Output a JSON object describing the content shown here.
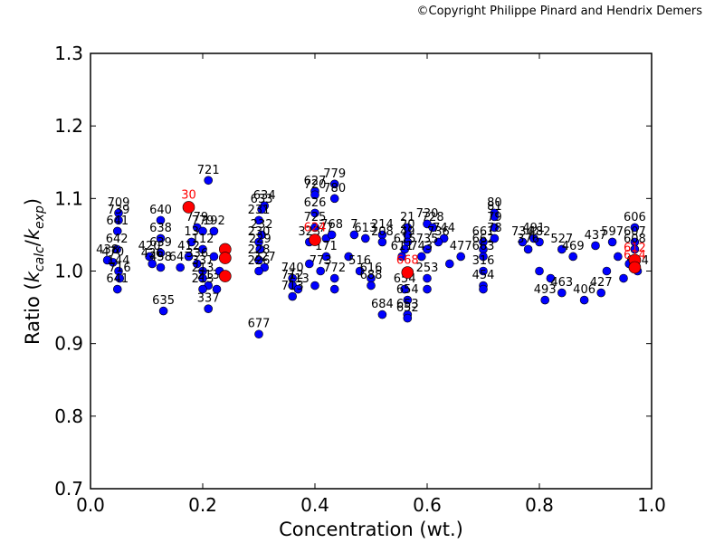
{
  "copyright": "©Copyright Philippe Pinard and Hendrix Demers",
  "colors": {
    "blue": "#0000ff",
    "red": "#ff0000",
    "frame": "#000000"
  },
  "chart_data": {
    "type": "scatter",
    "xlabel": "Concentration (wt.)",
    "ylabel_parts": [
      "Ratio (",
      "k",
      "calc",
      "/",
      "k",
      "exp",
      ")"
    ],
    "xlim": [
      0.0,
      1.0
    ],
    "ylim": [
      0.7,
      1.3
    ],
    "xticks": [
      "0.0",
      "0.2",
      "0.4",
      "0.6",
      "0.8",
      "1.0"
    ],
    "yticks": [
      "0.7",
      "0.8",
      "0.9",
      "1.0",
      "1.1",
      "1.2",
      "1.3"
    ],
    "grid": false,
    "series": [
      {
        "color": "blue",
        "points": [
          {
            "x": 0.05,
            "y": 1.08,
            "label": "709"
          },
          {
            "x": 0.05,
            "y": 1.07,
            "label": "739"
          },
          {
            "x": 0.048,
            "y": 1.055,
            "label": "641"
          },
          {
            "x": 0.047,
            "y": 1.03,
            "label": "642"
          },
          {
            "x": 0.03,
            "y": 1.015,
            "label": "438"
          },
          {
            "x": 0.04,
            "y": 1.012,
            "label": "470"
          },
          {
            "x": 0.05,
            "y": 1.0,
            "label": "144"
          },
          {
            "x": 0.052,
            "y": 0.99,
            "label": "716"
          },
          {
            "x": 0.048,
            "y": 0.975,
            "label": "641"
          },
          {
            "x": 0.125,
            "y": 1.07,
            "label": "640"
          },
          {
            "x": 0.125,
            "y": 1.045,
            "label": "638"
          },
          {
            "x": 0.125,
            "y": 1.025,
            "label": "639"
          },
          {
            "x": 0.105,
            "y": 1.02,
            "label": "420"
          },
          {
            "x": 0.11,
            "y": 1.01,
            "label": "436"
          },
          {
            "x": 0.125,
            "y": 1.005,
            "label": "458"
          },
          {
            "x": 0.13,
            "y": 0.945,
            "label": "635"
          },
          {
            "x": 0.16,
            "y": 1.005,
            "label": "647"
          },
          {
            "x": 0.21,
            "y": 1.125,
            "label": "721"
          },
          {
            "x": 0.19,
            "y": 1.06,
            "label": "779"
          },
          {
            "x": 0.2,
            "y": 1.055,
            "label": "779"
          },
          {
            "x": 0.22,
            "y": 1.055,
            "label": "192"
          },
          {
            "x": 0.18,
            "y": 1.04,
            "label": "13"
          },
          {
            "x": 0.2,
            "y": 1.03,
            "label": "112"
          },
          {
            "x": 0.175,
            "y": 1.02,
            "label": "412"
          },
          {
            "x": 0.19,
            "y": 1.01,
            "label": "336"
          },
          {
            "x": 0.2,
            "y": 1.0,
            "label": "337"
          },
          {
            "x": 0.2,
            "y": 0.99,
            "label": "213"
          },
          {
            "x": 0.21,
            "y": 0.98,
            "label": "213"
          },
          {
            "x": 0.2,
            "y": 0.975,
            "label": "213"
          },
          {
            "x": 0.21,
            "y": 0.948,
            "label": "337"
          },
          {
            "x": 0.22,
            "y": 1.02,
            "label": ""
          },
          {
            "x": 0.23,
            "y": 1.0,
            "label": ""
          },
          {
            "x": 0.225,
            "y": 0.975,
            "label": ""
          },
          {
            "x": 0.31,
            "y": 1.09,
            "label": "634"
          },
          {
            "x": 0.305,
            "y": 1.085,
            "label": "633"
          },
          {
            "x": 0.3,
            "y": 1.07,
            "label": "231"
          },
          {
            "x": 0.305,
            "y": 1.05,
            "label": "232"
          },
          {
            "x": 0.3,
            "y": 1.04,
            "label": "230"
          },
          {
            "x": 0.302,
            "y": 1.03,
            "label": "229"
          },
          {
            "x": 0.3,
            "y": 1.015,
            "label": "228"
          },
          {
            "x": 0.31,
            "y": 1.005,
            "label": "227"
          },
          {
            "x": 0.3,
            "y": 1.0,
            "label": "226"
          },
          {
            "x": 0.3,
            "y": 0.913,
            "label": "677"
          },
          {
            "x": 0.36,
            "y": 0.99,
            "label": "740"
          },
          {
            "x": 0.36,
            "y": 0.98,
            "label": "712"
          },
          {
            "x": 0.37,
            "y": 0.975,
            "label": "713"
          },
          {
            "x": 0.36,
            "y": 0.965,
            "label": "713"
          },
          {
            "x": 0.4,
            "y": 1.11,
            "label": "627"
          },
          {
            "x": 0.4,
            "y": 1.105,
            "label": "720"
          },
          {
            "x": 0.4,
            "y": 1.08,
            "label": "626"
          },
          {
            "x": 0.4,
            "y": 1.06,
            "label": "725"
          },
          {
            "x": 0.39,
            "y": 1.04,
            "label": "323"
          },
          {
            "x": 0.42,
            "y": 1.045,
            "label": "77"
          },
          {
            "x": 0.43,
            "y": 1.05,
            "label": "768"
          },
          {
            "x": 0.435,
            "y": 1.12,
            "label": "779"
          },
          {
            "x": 0.435,
            "y": 1.1,
            "label": "780"
          },
          {
            "x": 0.42,
            "y": 1.02,
            "label": "171"
          },
          {
            "x": 0.41,
            "y": 1.0,
            "label": "773"
          },
          {
            "x": 0.435,
            "y": 0.99,
            "label": "772"
          },
          {
            "x": 0.435,
            "y": 0.975,
            "label": ""
          },
          {
            "x": 0.4,
            "y": 0.98,
            "label": ""
          },
          {
            "x": 0.39,
            "y": 1.01,
            "label": ""
          },
          {
            "x": 0.47,
            "y": 1.05,
            "label": "7"
          },
          {
            "x": 0.49,
            "y": 1.045,
            "label": "613"
          },
          {
            "x": 0.52,
            "y": 1.05,
            "label": "214"
          },
          {
            "x": 0.52,
            "y": 1.04,
            "label": "208"
          },
          {
            "x": 0.46,
            "y": 1.02,
            "label": ""
          },
          {
            "x": 0.48,
            "y": 1.0,
            "label": "516"
          },
          {
            "x": 0.5,
            "y": 0.99,
            "label": "616"
          },
          {
            "x": 0.5,
            "y": 0.98,
            "label": "688"
          },
          {
            "x": 0.52,
            "y": 0.94,
            "label": "684"
          },
          {
            "x": 0.565,
            "y": 1.06,
            "label": "21"
          },
          {
            "x": 0.565,
            "y": 1.05,
            "label": "20"
          },
          {
            "x": 0.565,
            "y": 1.04,
            "label": "49"
          },
          {
            "x": 0.56,
            "y": 1.03,
            "label": "615"
          },
          {
            "x": 0.555,
            "y": 1.02,
            "label": "611"
          },
          {
            "x": 0.56,
            "y": 0.975,
            "label": "654"
          },
          {
            "x": 0.565,
            "y": 0.96,
            "label": "654"
          },
          {
            "x": 0.565,
            "y": 0.94,
            "label": "653"
          },
          {
            "x": 0.565,
            "y": 0.935,
            "label": "652"
          },
          {
            "x": 0.6,
            "y": 1.065,
            "label": "730"
          },
          {
            "x": 0.61,
            "y": 1.06,
            "label": "728"
          },
          {
            "x": 0.63,
            "y": 1.045,
            "label": "744"
          },
          {
            "x": 0.62,
            "y": 1.04,
            "label": "736"
          },
          {
            "x": 0.6,
            "y": 1.03,
            "label": "735"
          },
          {
            "x": 0.59,
            "y": 1.02,
            "label": "743"
          },
          {
            "x": 0.6,
            "y": 0.99,
            "label": "253"
          },
          {
            "x": 0.6,
            "y": 0.975,
            "label": ""
          },
          {
            "x": 0.64,
            "y": 1.01,
            "label": ""
          },
          {
            "x": 0.66,
            "y": 1.02,
            "label": "477"
          },
          {
            "x": 0.7,
            "y": 1.04,
            "label": "661"
          },
          {
            "x": 0.7,
            "y": 1.03,
            "label": "662"
          },
          {
            "x": 0.72,
            "y": 1.08,
            "label": "80"
          },
          {
            "x": 0.72,
            "y": 1.075,
            "label": "81"
          },
          {
            "x": 0.72,
            "y": 1.06,
            "label": "79"
          },
          {
            "x": 0.72,
            "y": 1.045,
            "label": "78"
          },
          {
            "x": 0.7,
            "y": 1.02,
            "label": "663"
          },
          {
            "x": 0.7,
            "y": 1.0,
            "label": "316"
          },
          {
            "x": 0.7,
            "y": 0.98,
            "label": "454"
          },
          {
            "x": 0.7,
            "y": 0.975,
            "label": ""
          },
          {
            "x": 0.77,
            "y": 1.04,
            "label": "734"
          },
          {
            "x": 0.79,
            "y": 1.045,
            "label": "491"
          },
          {
            "x": 0.8,
            "y": 1.04,
            "label": "482"
          },
          {
            "x": 0.78,
            "y": 1.03,
            "label": "376"
          },
          {
            "x": 0.84,
            "y": 1.03,
            "label": "527"
          },
          {
            "x": 0.8,
            "y": 1.0,
            "label": ""
          },
          {
            "x": 0.82,
            "y": 0.99,
            "label": ""
          },
          {
            "x": 0.81,
            "y": 0.96,
            "label": "493"
          },
          {
            "x": 0.84,
            "y": 0.97,
            "label": "463"
          },
          {
            "x": 0.86,
            "y": 1.02,
            "label": "469"
          },
          {
            "x": 0.88,
            "y": 0.96,
            "label": "406"
          },
          {
            "x": 0.9,
            "y": 1.035,
            "label": "437"
          },
          {
            "x": 0.93,
            "y": 1.04,
            "label": "597"
          },
          {
            "x": 0.91,
            "y": 0.97,
            "label": "427"
          },
          {
            "x": 0.92,
            "y": 1.0,
            "label": ""
          },
          {
            "x": 0.95,
            "y": 0.99,
            "label": ""
          },
          {
            "x": 0.97,
            "y": 1.06,
            "label": "606"
          },
          {
            "x": 0.97,
            "y": 1.04,
            "label": "607"
          },
          {
            "x": 0.97,
            "y": 1.03,
            "label": "608"
          },
          {
            "x": 0.975,
            "y": 1.0,
            "label": "604"
          },
          {
            "x": 0.96,
            "y": 1.01,
            "label": ""
          },
          {
            "x": 0.94,
            "y": 1.02,
            "label": ""
          }
        ]
      },
      {
        "color": "red",
        "points": [
          {
            "x": 0.175,
            "y": 1.088,
            "label": "30"
          },
          {
            "x": 0.24,
            "y": 1.03,
            "label": ""
          },
          {
            "x": 0.24,
            "y": 1.018,
            "label": ""
          },
          {
            "x": 0.24,
            "y": 0.993,
            "label": ""
          },
          {
            "x": 0.4,
            "y": 1.043,
            "label": "624"
          },
          {
            "x": 0.565,
            "y": 0.998,
            "label": "668"
          },
          {
            "x": 0.97,
            "y": 1.015,
            "label": "612"
          },
          {
            "x": 0.97,
            "y": 1.005,
            "label": "614"
          }
        ]
      }
    ]
  }
}
